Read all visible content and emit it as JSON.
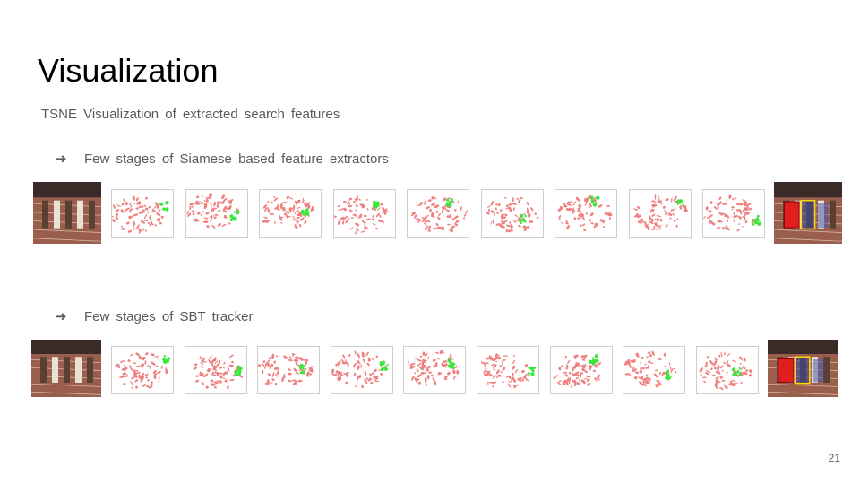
{
  "slide": {
    "title": "Visualization",
    "subtitle": "TSNE  Visualization  of extracted  search  features",
    "page_number": "21"
  },
  "rows": [
    {
      "bullet_icon": "arrow-right-icon",
      "bullet_text": "Few  stages  of Siamese  based  feature  extractors",
      "tsne_panels": 9
    },
    {
      "bullet_icon": "arrow-right-icon",
      "bullet_text": "Few  stages  of SBT  tracker",
      "tsne_panels": 9
    }
  ],
  "colors": {
    "cluster_main": "#f08080",
    "cluster_target": "#39e639",
    "track_box": "#ffd700",
    "target_box": "#e02020"
  }
}
